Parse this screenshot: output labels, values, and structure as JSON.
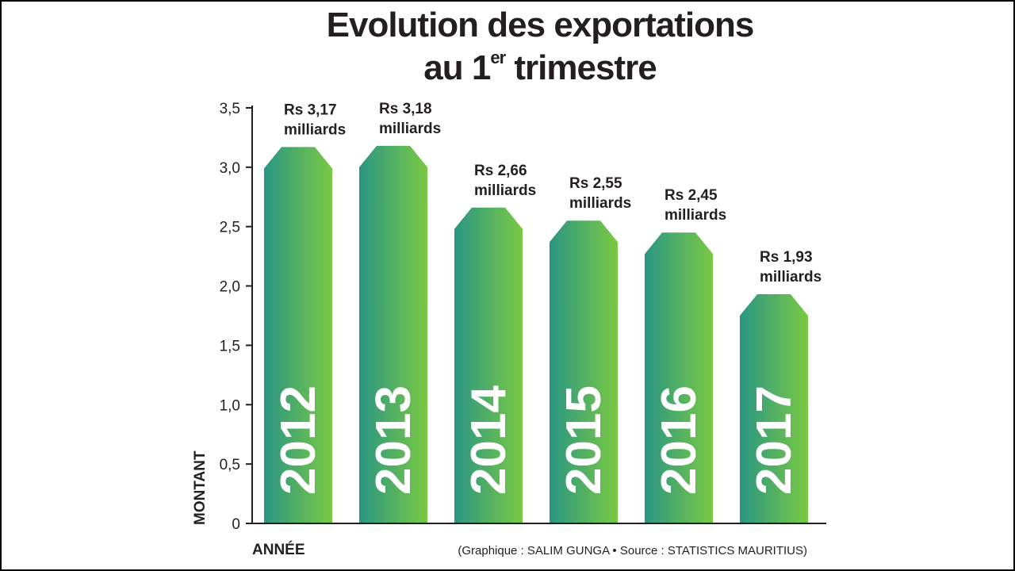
{
  "chart_data": {
    "type": "bar",
    "title_line1": "Evolution des exportations",
    "title_line2_prefix": "au 1",
    "title_line2_sup": "er",
    "title_line2_suffix": " trimestre",
    "categories": [
      "2012",
      "2013",
      "2014",
      "2015",
      "2016",
      "2017"
    ],
    "values": [
      3.17,
      3.18,
      2.66,
      2.55,
      2.45,
      1.93
    ],
    "value_labels": [
      [
        "Rs 3,17",
        "milliards"
      ],
      [
        "Rs 3,18",
        "milliards"
      ],
      [
        "Rs 2,66",
        "milliards"
      ],
      [
        "Rs 2,55",
        "milliards"
      ],
      [
        "Rs 2,45",
        "milliards"
      ],
      [
        "Rs 1,93",
        "milliards"
      ]
    ],
    "ylabel": "MONTANT",
    "xlabel": "ANNÉE",
    "ylim": [
      0,
      3.5
    ],
    "yticks": [
      0,
      0.5,
      1.0,
      1.5,
      2.0,
      2.5,
      3.0,
      3.5
    ],
    "ytick_labels": [
      "0",
      "0,5",
      "1,0",
      "1,5",
      "2,0",
      "2,5",
      "3,0",
      "3,5"
    ],
    "credit": "(Graphique : SALIM GUNGA • Source : STATISTICS MAURITIUS)",
    "colors": {
      "bar_start": "#2a9683",
      "bar_end": "#7ac943",
      "text": "#231f20"
    }
  }
}
